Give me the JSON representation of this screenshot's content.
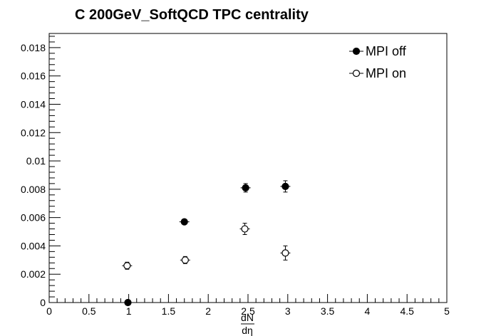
{
  "chart_data": {
    "type": "scatter",
    "title": "C 200GeV_SoftQCD TPC centrality",
    "xlabel_numerator": "dN",
    "xlabel_denominator": "dη",
    "ylabel": "",
    "xlim": [
      0,
      5
    ],
    "ylim": [
      0,
      0.019
    ],
    "x_ticks": [
      "0",
      "0.5",
      "1",
      "1.5",
      "2",
      "2.5",
      "3",
      "3.5",
      "4",
      "4.5",
      "5"
    ],
    "y_ticks": [
      "0",
      "0.002",
      "0.004",
      "0.006",
      "0.008",
      "0.01",
      "0.012",
      "0.014",
      "0.016",
      "0.018"
    ],
    "grid": false,
    "legend_position": "top-right",
    "series": [
      {
        "name": "MPI off",
        "marker": "filled-circle",
        "x": [
          0.99,
          1.7,
          2.47,
          2.97
        ],
        "y": [
          0.0,
          0.0057,
          0.0081,
          0.0082
        ],
        "err": [
          5e-05,
          0.00015,
          0.0003,
          0.0004
        ]
      },
      {
        "name": "MPI on",
        "marker": "open-circle",
        "x": [
          0.98,
          1.71,
          2.46,
          2.97
        ],
        "y": [
          0.0026,
          0.003,
          0.0052,
          0.0035
        ],
        "err": [
          0.00025,
          0.00025,
          0.0004,
          0.0005
        ]
      }
    ]
  }
}
